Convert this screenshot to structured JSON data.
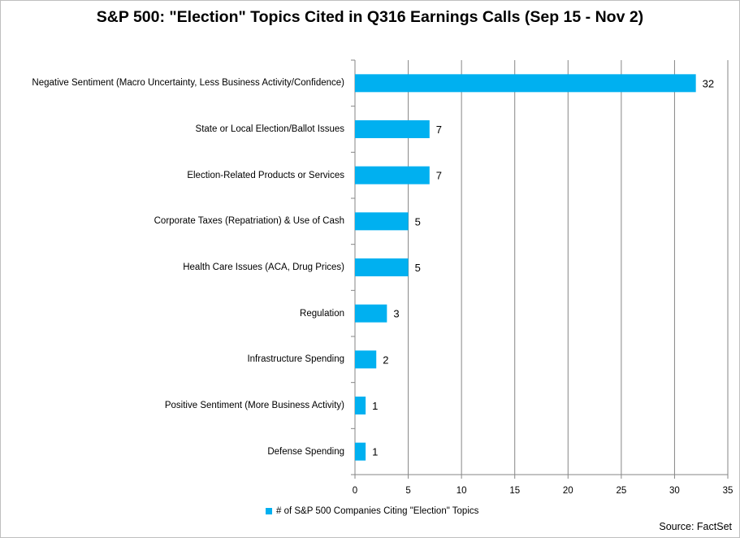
{
  "chart_data": {
    "type": "bar",
    "orientation": "horizontal",
    "title": "S&P 500: \"Election\" Topics Cited in Q316 Earnings Calls (Sep 15 - Nov 2)",
    "categories": [
      "Negative Sentiment (Macro Uncertainty, Less Business Activity/Confidence)",
      "State or Local Election/Ballot Issues",
      "Election-Related Products or Services",
      "Corporate Taxes (Repatriation) & Use of Cash",
      "Health Care Issues (ACA, Drug Prices)",
      "Regulation",
      "Infrastructure Spending",
      "Positive Sentiment (More Business Activity)",
      "Defense Spending"
    ],
    "series": [
      {
        "name": "# of S&P 500 Companies Citing \"Election\" Topics",
        "values": [
          32,
          7,
          7,
          5,
          5,
          3,
          2,
          1,
          1
        ]
      }
    ],
    "xlim": [
      0,
      35
    ],
    "xticks": [
      0,
      5,
      10,
      15,
      20,
      25,
      30,
      35
    ],
    "data_labels": true,
    "grid": "vertical",
    "legend": "bottom",
    "bar_color": "#00b0f0",
    "grid_color": "#868686",
    "source": "Source: FactSet"
  }
}
